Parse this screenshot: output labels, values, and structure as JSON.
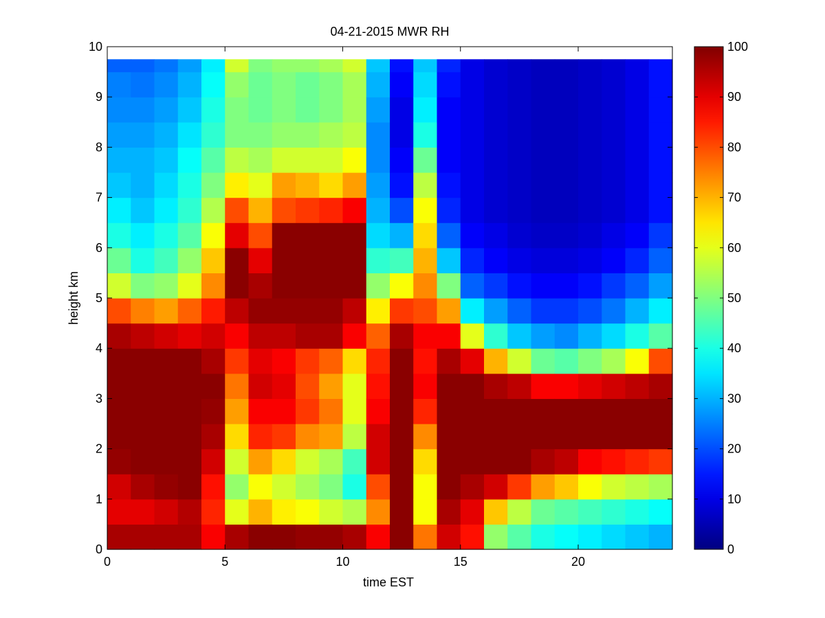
{
  "chart_data": {
    "type": "heatmap",
    "title": "04-21-2015 MWR RH",
    "xlabel": "time EST",
    "ylabel": "height km",
    "xlim": [
      0,
      24
    ],
    "ylim": [
      0,
      10
    ],
    "x_ticks": [
      0,
      5,
      10,
      15,
      20
    ],
    "y_ticks": [
      0,
      1,
      2,
      3,
      4,
      5,
      6,
      7,
      8,
      9,
      10
    ],
    "colorbar": {
      "colormap": "jet",
      "clim": [
        0,
        100
      ],
      "ticks": [
        0,
        10,
        20,
        30,
        40,
        50,
        60,
        70,
        80,
        90,
        100
      ]
    },
    "x_hours": [
      0,
      1,
      2,
      3,
      4,
      5,
      6,
      7,
      8,
      9,
      10,
      11,
      12,
      13,
      14,
      15,
      16,
      17,
      18,
      19,
      20,
      21,
      22,
      23
    ],
    "y_km": [
      0.0,
      0.5,
      1.0,
      1.5,
      2.0,
      2.5,
      3.0,
      3.5,
      4.0,
      4.5,
      5.0,
      5.5,
      6.0,
      6.5,
      7.0,
      7.5,
      8.0,
      8.5,
      9.0,
      9.5
    ],
    "rh_values_by_hour": [
      [
        96,
        90,
        92,
        98,
        99,
        99,
        99,
        99,
        96,
        80,
        58,
        48,
        40,
        36,
        32,
        30,
        28,
        26,
        25,
        22
      ],
      [
        96,
        90,
        96,
        99,
        99,
        99,
        99,
        99,
        94,
        75,
        50,
        40,
        36,
        32,
        30,
        30,
        28,
        26,
        24,
        22
      ],
      [
        96,
        92,
        98,
        99,
        99,
        99,
        99,
        99,
        92,
        72,
        52,
        44,
        40,
        36,
        34,
        32,
        30,
        28,
        26,
        24
      ],
      [
        96,
        95,
        99,
        99,
        99,
        99,
        99,
        99,
        90,
        78,
        60,
        52,
        46,
        42,
        40,
        38,
        35,
        32,
        30,
        28
      ],
      [
        88,
        84,
        86,
        92,
        96,
        98,
        99,
        96,
        92,
        85,
        74,
        68,
        62,
        55,
        50,
        46,
        42,
        40,
        38,
        36
      ],
      [
        96,
        60,
        52,
        58,
        66,
        72,
        76,
        82,
        88,
        94,
        99,
        99,
        90,
        80,
        64,
        56,
        50,
        50,
        52,
        58
      ],
      [
        99,
        70,
        62,
        72,
        84,
        88,
        92,
        90,
        94,
        98,
        96,
        90,
        80,
        70,
        60,
        54,
        50,
        48,
        48,
        50
      ],
      [
        99,
        64,
        58,
        66,
        82,
        88,
        90,
        88,
        94,
        98,
        99,
        99,
        99,
        80,
        72,
        58,
        52,
        50,
        50,
        52
      ],
      [
        98,
        62,
        54,
        58,
        74,
        82,
        80,
        82,
        96,
        98,
        99,
        99,
        99,
        82,
        70,
        58,
        52,
        48,
        48,
        52
      ],
      [
        98,
        58,
        50,
        54,
        72,
        76,
        72,
        78,
        96,
        98,
        99,
        99,
        99,
        84,
        66,
        58,
        54,
        50,
        50,
        54
      ],
      [
        96,
        55,
        40,
        44,
        56,
        60,
        60,
        66,
        88,
        94,
        99,
        99,
        99,
        88,
        72,
        62,
        56,
        54,
        54,
        58
      ],
      [
        88,
        74,
        80,
        92,
        92,
        88,
        86,
        84,
        78,
        64,
        52,
        42,
        34,
        30,
        28,
        26,
        26,
        28,
        30,
        32
      ],
      [
        99,
        99,
        99,
        99,
        99,
        99,
        99,
        99,
        96,
        82,
        62,
        44,
        30,
        20,
        14,
        12,
        10,
        10,
        12,
        14
      ],
      [
        76,
        62,
        62,
        66,
        74,
        84,
        88,
        86,
        88,
        80,
        74,
        70,
        66,
        62,
        56,
        48,
        40,
        36,
        34,
        32
      ],
      [
        92,
        96,
        99,
        99,
        99,
        99,
        99,
        96,
        88,
        72,
        50,
        32,
        22,
        16,
        14,
        12,
        12,
        12,
        14,
        16
      ],
      [
        86,
        90,
        96,
        99,
        99,
        99,
        99,
        90,
        60,
        36,
        22,
        16,
        12,
        10,
        10,
        10,
        10,
        10,
        10,
        10
      ],
      [
        52,
        68,
        92,
        99,
        99,
        99,
        96,
        70,
        42,
        28,
        18,
        12,
        10,
        8,
        8,
        8,
        8,
        8,
        8,
        8
      ],
      [
        46,
        56,
        82,
        99,
        99,
        99,
        94,
        58,
        32,
        22,
        14,
        10,
        8,
        7,
        7,
        7,
        7,
        7,
        7,
        7
      ],
      [
        40,
        48,
        72,
        96,
        99,
        99,
        88,
        48,
        28,
        18,
        12,
        9,
        7,
        6,
        6,
        6,
        6,
        6,
        6,
        6
      ],
      [
        38,
        46,
        68,
        94,
        99,
        99,
        88,
        46,
        26,
        18,
        12,
        9,
        7,
        6,
        6,
        6,
        6,
        6,
        6,
        6
      ],
      [
        36,
        44,
        62,
        88,
        99,
        99,
        90,
        50,
        30,
        20,
        14,
        10,
        8,
        7,
        7,
        7,
        7,
        7,
        7,
        7
      ],
      [
        34,
        42,
        58,
        86,
        99,
        99,
        92,
        54,
        34,
        24,
        18,
        12,
        10,
        8,
        8,
        8,
        8,
        8,
        8,
        8
      ],
      [
        32,
        40,
        56,
        84,
        99,
        99,
        94,
        62,
        40,
        30,
        22,
        16,
        12,
        10,
        10,
        10,
        10,
        10,
        10,
        10
      ],
      [
        30,
        38,
        54,
        82,
        99,
        99,
        96,
        80,
        46,
        36,
        28,
        22,
        18,
        14,
        14,
        14,
        14,
        14,
        14,
        14
      ]
    ]
  }
}
